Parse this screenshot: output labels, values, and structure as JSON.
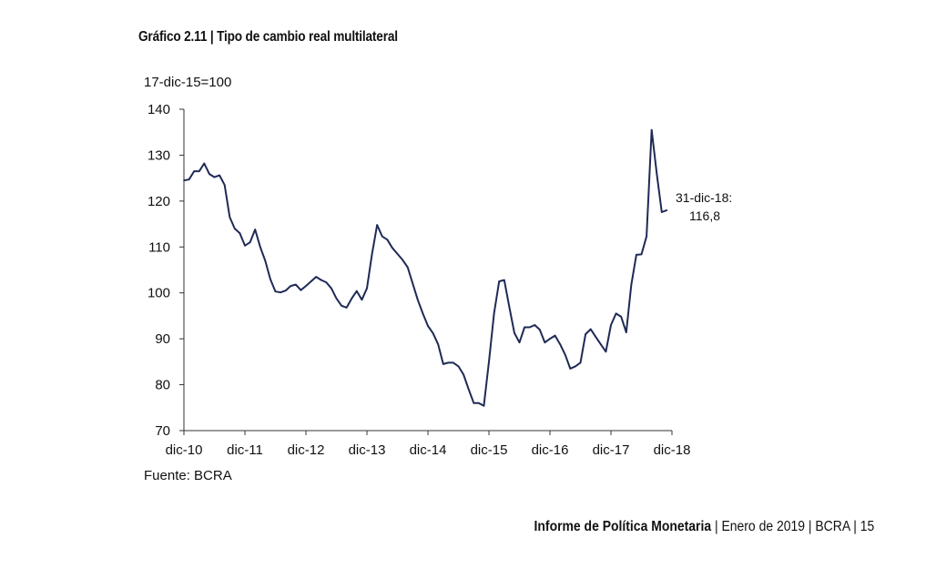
{
  "title": "Gráfico 2.11 | Tipo de cambio real multilateral",
  "footer": {
    "publication": "Informe de Política Monetaria",
    "rest": " | Enero de 2019 | BCRA | 15"
  },
  "chart_data": {
    "type": "line",
    "ylabel": "17-dic-15=100",
    "ylim": [
      70,
      140
    ],
    "yticks": [
      70,
      80,
      90,
      100,
      110,
      120,
      130,
      140
    ],
    "xtick_labels": [
      "dic-10",
      "dic-11",
      "dic-12",
      "dic-13",
      "dic-14",
      "dic-15",
      "dic-16",
      "dic-17",
      "dic-18"
    ],
    "source": "Fuente: BCRA",
    "annotation": {
      "line1": "31-dic-18:",
      "line2": "116,8"
    },
    "grid": false,
    "line_color": "#1f2a56",
    "x": [
      "dic-10",
      "ene-11",
      "feb-11",
      "mar-11",
      "abr-11",
      "may-11",
      "jun-11",
      "jul-11",
      "ago-11",
      "sep-11",
      "oct-11",
      "nov-11",
      "dic-11",
      "ene-12",
      "feb-12",
      "mar-12",
      "abr-12",
      "may-12",
      "jun-12",
      "jul-12",
      "ago-12",
      "sep-12",
      "oct-12",
      "nov-12",
      "dic-12",
      "ene-13",
      "feb-13",
      "mar-13",
      "abr-13",
      "may-13",
      "jun-13",
      "jul-13",
      "ago-13",
      "sep-13",
      "oct-13",
      "nov-13",
      "dic-13",
      "ene-14",
      "feb-14",
      "mar-14",
      "abr-14",
      "may-14",
      "jun-14",
      "jul-14",
      "ago-14",
      "sep-14",
      "oct-14",
      "nov-14",
      "dic-14",
      "ene-15",
      "feb-15",
      "mar-15",
      "abr-15",
      "may-15",
      "jun-15",
      "jul-15",
      "ago-15",
      "sep-15",
      "oct-15",
      "nov-15",
      "dic-15",
      "ene-16",
      "feb-16",
      "mar-16",
      "abr-16",
      "may-16",
      "jun-16",
      "jul-16",
      "ago-16",
      "sep-16",
      "oct-16",
      "nov-16",
      "dic-16",
      "ene-17",
      "feb-17",
      "mar-17",
      "abr-17",
      "may-17",
      "jun-17",
      "jul-17",
      "ago-17",
      "sep-17",
      "oct-17",
      "nov-17",
      "dic-17",
      "ene-18",
      "feb-18",
      "mar-18",
      "abr-18",
      "may-18",
      "jun-18",
      "jul-18",
      "ago-18",
      "sep-18",
      "oct-18",
      "nov-18"
    ],
    "values": [
      124.5,
      124.7,
      126.5,
      126.5,
      128.2,
      125.9,
      125.2,
      125.6,
      123.5,
      116.5,
      114,
      113,
      110.3,
      111,
      113.8,
      110,
      107,
      103,
      100.3,
      100.1,
      100.5,
      101.5,
      101.8,
      100.6,
      101.5,
      102.5,
      103.5,
      102.8,
      102.3,
      101,
      98.8,
      97.2,
      96.8,
      98.8,
      100.4,
      98.5,
      101,
      108.5,
      114.8,
      112.3,
      111.6,
      109.8,
      108.5,
      107.2,
      105.6,
      102,
      98.5,
      95.5,
      92.8,
      91.2,
      88.8,
      84.5,
      84.8,
      84.8,
      84,
      82.2,
      79,
      76,
      76,
      75.4,
      85,
      95.5,
      102.5,
      102.8,
      97,
      91.3,
      89.2,
      92.5,
      92.5,
      93,
      92,
      89.2,
      90,
      90.7,
      88.8,
      86.5,
      83.5,
      84,
      84.8,
      91,
      92.1,
      90.4,
      88.8,
      87.2,
      93,
      95.5,
      94.8,
      91.4,
      101.7,
      108.3,
      108.4,
      112.3,
      135.5,
      126,
      117.6,
      118
    ]
  }
}
